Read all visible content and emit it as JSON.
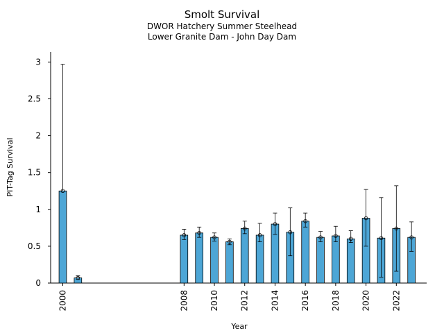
{
  "chart_data": {
    "type": "bar",
    "title": "Smolt Survival",
    "subtitle_lines": [
      "DWOR Hatchery Summer Steelhead",
      "Lower Granite Dam - John Day Dam"
    ],
    "xlabel": "Year",
    "ylabel": "PIT-Tag Survival",
    "ylim": [
      0,
      3.1
    ],
    "yticks": [
      0,
      0.5,
      1,
      1.5,
      2,
      2.5,
      3
    ],
    "ytick_labels": [
      "0",
      "0.5",
      "1",
      "1.5",
      "2",
      "2.5",
      "3"
    ],
    "xlim": [
      1999.2,
      2024.0
    ],
    "xticks": [
      2000,
      2008,
      2010,
      2012,
      2014,
      2016,
      2018,
      2020,
      2022
    ],
    "xtick_labels": [
      "2000",
      "2008",
      "2010",
      "2012",
      "2014",
      "2016",
      "2018",
      "2020",
      "2022"
    ],
    "grid": false,
    "legend": "none",
    "bar_color": "#4da6d6",
    "x": [
      2000,
      2001,
      2008,
      2009,
      2010,
      2011,
      2012,
      2013,
      2014,
      2015,
      2016,
      2017,
      2018,
      2019,
      2020,
      2021,
      2022,
      2023
    ],
    "values": [
      1.25,
      0.07,
      0.65,
      0.68,
      0.62,
      0.56,
      0.74,
      0.65,
      0.8,
      0.69,
      0.84,
      0.62,
      0.64,
      0.6,
      0.88,
      0.61,
      0.74,
      0.62
    ],
    "err_low": [
      null,
      0.05,
      0.59,
      0.62,
      0.57,
      0.52,
      0.67,
      0.56,
      0.66,
      0.37,
      0.76,
      0.56,
      0.56,
      0.55,
      0.5,
      0.08,
      0.16,
      0.43
    ],
    "err_high": [
      2.97,
      0.1,
      0.73,
      0.76,
      0.68,
      0.6,
      0.84,
      0.81,
      0.95,
      1.02,
      0.95,
      0.7,
      0.77,
      0.71,
      1.27,
      1.16,
      1.32,
      0.83
    ]
  }
}
